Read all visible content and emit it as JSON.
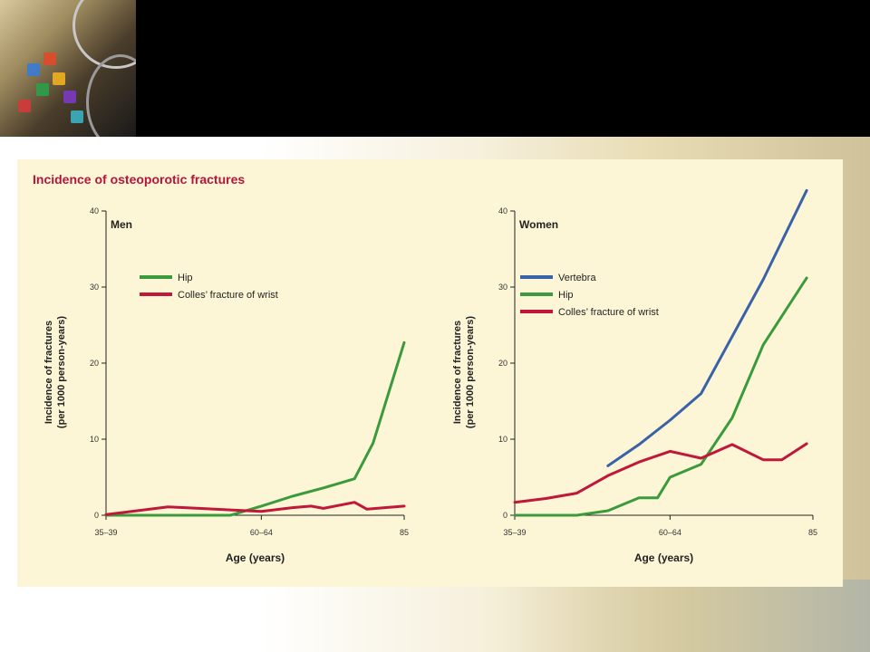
{
  "figure": {
    "title": "Incidence of osteoporotic fractures"
  },
  "colors": {
    "vertebra": "#3a62a8",
    "hip": "#3a9a3c",
    "colles": "#c0183a",
    "title": "#b5153a",
    "panel_bg": "#fdf6d6"
  },
  "chart_data": [
    {
      "type": "line",
      "panel_label": "Men",
      "xlabel": "Age (years)",
      "ylabel": "Incidence of fractures",
      "ylabel_sub": "(per 1000 person-years)",
      "x_ticks": [
        "35–39",
        "60–64",
        "85"
      ],
      "y_ticks": [
        "0",
        "10",
        "20",
        "30",
        "40"
      ],
      "ylim": [
        0,
        40
      ],
      "xlim": [
        37,
        85
      ],
      "legend_position": "top-left",
      "series": [
        {
          "name": "Hip",
          "color": "#3a9a3c",
          "x": [
            37,
            47,
            57,
            62,
            67,
            72,
            77,
            80,
            85
          ],
          "y": [
            0,
            0,
            0,
            1.2,
            2.5,
            3.6,
            4.8,
            9.5,
            22.7
          ]
        },
        {
          "name": "Colles’ fracture of wrist",
          "color": "#c0183a",
          "x": [
            37,
            42,
            47,
            52,
            57,
            62,
            67,
            70,
            72,
            77,
            79,
            85
          ],
          "y": [
            0.1,
            0.6,
            1.1,
            0.9,
            0.7,
            0.5,
            1.0,
            1.2,
            0.9,
            1.7,
            0.8,
            1.2
          ]
        }
      ]
    },
    {
      "type": "line",
      "panel_label": "Women",
      "xlabel": "Age (years)",
      "ylabel": "Incidence of fractures",
      "ylabel_sub": "(per 1000 person-years)",
      "x_ticks": [
        "35–39",
        "60–64",
        "85"
      ],
      "y_ticks": [
        "0",
        "10",
        "20",
        "30",
        "40"
      ],
      "ylim": [
        0,
        40
      ],
      "xlim": [
        37,
        85
      ],
      "legend_position": "top-left",
      "series": [
        {
          "name": "Vertebra",
          "color": "#3a62a8",
          "x": [
            52,
            57,
            62,
            67,
            72,
            77,
            84
          ],
          "y": [
            6.5,
            9.3,
            12.5,
            16.0,
            23.5,
            31.0,
            42.7
          ]
        },
        {
          "name": "Hip",
          "color": "#3a9a3c",
          "x": [
            37,
            42,
            47,
            52,
            57,
            60,
            62,
            67,
            72,
            77,
            84
          ],
          "y": [
            0,
            0,
            0,
            0.6,
            2.3,
            2.3,
            5.0,
            6.7,
            12.8,
            22.4,
            31.2
          ]
        },
        {
          "name": "Colles’ fracture of wrist",
          "color": "#c0183a",
          "x": [
            37,
            42,
            47,
            52,
            57,
            62,
            67,
            72,
            77,
            80,
            84
          ],
          "y": [
            1.7,
            2.2,
            2.9,
            5.2,
            7.0,
            8.4,
            7.5,
            9.3,
            7.3,
            7.3,
            9.4
          ]
        }
      ]
    }
  ]
}
